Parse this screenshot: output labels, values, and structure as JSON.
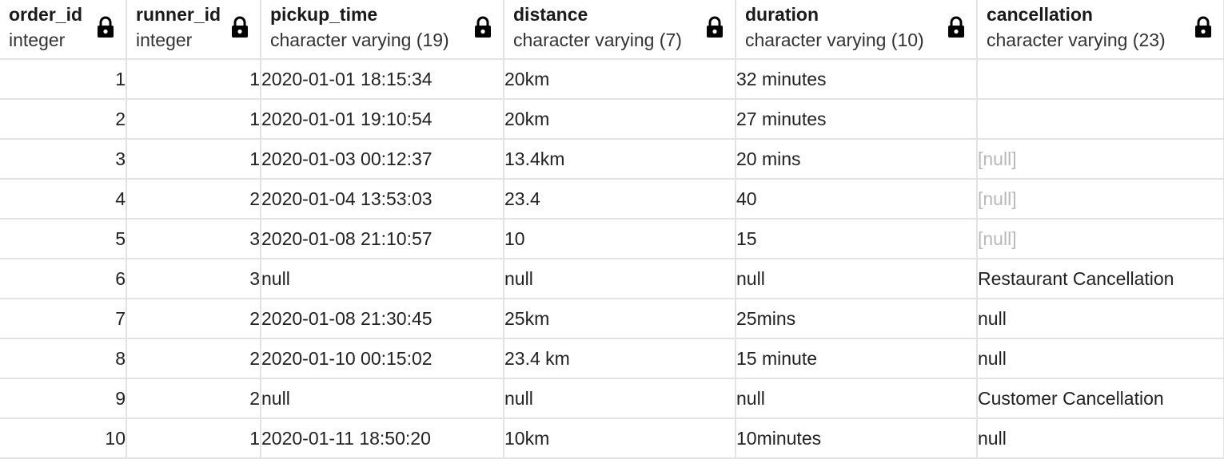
{
  "columns": [
    {
      "name": "order_id",
      "type": "integer",
      "icon": "lock-icon"
    },
    {
      "name": "runner_id",
      "type": "integer",
      "icon": "lock-icon"
    },
    {
      "name": "pickup_time",
      "type": "character varying (19)",
      "icon": "lock-icon"
    },
    {
      "name": "distance",
      "type": "character varying (7)",
      "icon": "lock-icon"
    },
    {
      "name": "duration",
      "type": "character varying (10)",
      "icon": "lock-icon"
    },
    {
      "name": "cancellation",
      "type": "character varying (23)",
      "icon": "lock-icon"
    }
  ],
  "rows": [
    {
      "order_id": "1",
      "runner_id": "1",
      "pickup_time": "2020-01-01 18:15:34",
      "distance": "20km",
      "duration": "32 minutes",
      "cancellation": ""
    },
    {
      "order_id": "2",
      "runner_id": "1",
      "pickup_time": "2020-01-01 19:10:54",
      "distance": "20km",
      "duration": "27 minutes",
      "cancellation": ""
    },
    {
      "order_id": "3",
      "runner_id": "1",
      "pickup_time": "2020-01-03 00:12:37",
      "distance": "13.4km",
      "duration": "20 mins",
      "cancellation": "[null]"
    },
    {
      "order_id": "4",
      "runner_id": "2",
      "pickup_time": "2020-01-04 13:53:03",
      "distance": "23.4",
      "duration": "40",
      "cancellation": "[null]"
    },
    {
      "order_id": "5",
      "runner_id": "3",
      "pickup_time": "2020-01-08 21:10:57",
      "distance": "10",
      "duration": "15",
      "cancellation": "[null]"
    },
    {
      "order_id": "6",
      "runner_id": "3",
      "pickup_time": "null",
      "distance": "null",
      "duration": "null",
      "cancellation": "Restaurant Cancellation"
    },
    {
      "order_id": "7",
      "runner_id": "2",
      "pickup_time": "2020-01-08 21:30:45",
      "distance": "25km",
      "duration": "25mins",
      "cancellation": "null"
    },
    {
      "order_id": "8",
      "runner_id": "2",
      "pickup_time": "2020-01-10 00:15:02",
      "distance": "23.4 km",
      "duration": "15 minute",
      "cancellation": "null"
    },
    {
      "order_id": "9",
      "runner_id": "2",
      "pickup_time": "null",
      "distance": "null",
      "duration": "null",
      "cancellation": "Customer Cancellation"
    },
    {
      "order_id": "10",
      "runner_id": "1",
      "pickup_time": "2020-01-11 18:50:20",
      "distance": "10km",
      "duration": "10minutes",
      "cancellation": "null"
    }
  ],
  "colors": {
    "grid_line": "#e3e3e3",
    "text": "#222222",
    "null_placeholder": "#b9b9b9"
  }
}
